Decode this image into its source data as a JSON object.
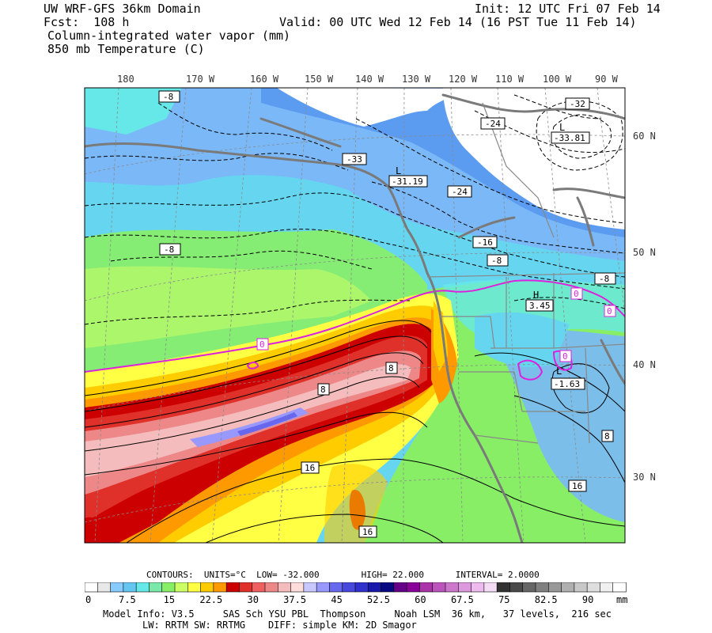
{
  "header": {
    "model_domain": "UW WRF-GFS 36km Domain",
    "forecast": "Fcst:  108 h",
    "field1": "Column-integrated water vapor (mm)",
    "field2": "850 mb Temperature (C)",
    "init": "Init: 12 UTC Fri 07 Feb 14",
    "valid": "Valid: 00 UTC Wed 12 Feb 14 (16 PST Tue 11 Feb 14)"
  },
  "longitude_labels": [
    "180",
    "170 W",
    "160 W",
    "150 W",
    "140 W",
    "130 W",
    "120 W",
    "110 W",
    "100 W",
    "90 W"
  ],
  "latitude_labels": [
    "60 N",
    "50 N",
    "40 N",
    "30 N"
  ],
  "contour_labels": [
    "-8",
    "-32",
    "-24",
    "-33.81",
    "-33",
    "-31.19",
    "-24",
    "-8",
    "-16",
    "-8",
    "-8",
    "3.45",
    "0",
    "0",
    "0",
    "0",
    "8",
    "8",
    "16",
    "16",
    "8",
    "16",
    "-1.63"
  ],
  "pressure_centers": [
    "L",
    "L",
    "H",
    "L"
  ],
  "colorbar": {
    "summary": {
      "contours": "CONTOURS:",
      "units": "UNITS=°C",
      "low": "LOW= -32.000",
      "high": "HIGH= 22.000",
      "interval": "INTERVAL= 2.0000"
    },
    "colors": [
      "#ffffff",
      "#e8e8e8",
      "#88ccff",
      "#66c6f2",
      "#66e8e8",
      "#7ae8a8",
      "#88ee66",
      "#ccff66",
      "#ffff44",
      "#ffcc00",
      "#ff9900",
      "#cc0000",
      "#e0302a",
      "#ee6060",
      "#ee8888",
      "#f4bcbc",
      "#ffdddd",
      "#c8c8ff",
      "#9898ff",
      "#6868ee",
      "#4848dd",
      "#3030cc",
      "#1818aa",
      "#080880",
      "#660088",
      "#880099",
      "#aa33aa",
      "#bb55bb",
      "#cc77cc",
      "#dd99dd",
      "#eebbee",
      "#f4ddf4",
      "#333333",
      "#4a4a4a",
      "#666666",
      "#808080",
      "#999999",
      "#b0b0b0",
      "#c8c8c8",
      "#dedede",
      "#f0f0f0",
      "#ffffff"
    ],
    "tick_labels": [
      "0",
      "7.5",
      "15",
      "22.5",
      "30",
      "37.5",
      "45",
      "52.5",
      "60",
      "67.5",
      "75",
      "82.5",
      "90"
    ],
    "units_label": "mm"
  },
  "model_info": {
    "line1": "Model Info: V3.5     SAS Sch YSU PBL  Thompson     Noah LSM  36 km,   37 levels,  216 sec",
    "line2": "LW: RRTM SW: RRTMG    DIFF: simple KM: 2D Smagor"
  }
}
